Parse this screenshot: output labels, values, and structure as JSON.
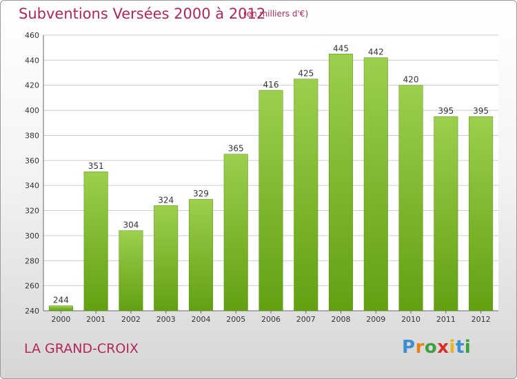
{
  "chart_data": {
    "type": "bar",
    "title": "Subventions Versées 2000 à 2012",
    "subtitle": "(en milliers d'€)",
    "categories": [
      "2000",
      "2001",
      "2002",
      "2003",
      "2004",
      "2005",
      "2006",
      "2007",
      "2008",
      "2009",
      "2010",
      "2011",
      "2012"
    ],
    "values": [
      244,
      351,
      304,
      324,
      329,
      365,
      416,
      425,
      445,
      442,
      420,
      395,
      395
    ],
    "ylim": [
      240,
      460
    ],
    "yticks": [
      240,
      260,
      280,
      300,
      320,
      340,
      360,
      380,
      400,
      420,
      440,
      460
    ],
    "grid": true,
    "bar_color_top": "#9ccf4d",
    "bar_color_bottom": "#62a012"
  },
  "footer": {
    "commune": "LA GRAND-CROIX",
    "logo_letters": [
      "P",
      "r",
      "o",
      "x",
      "i",
      "t",
      "i"
    ],
    "logo_colors": [
      "#3b8fd1",
      "#e8801f",
      "#3aa23a",
      "#d6302a",
      "#e8b51f",
      "#3b8fd1",
      "#3aa23a"
    ]
  },
  "colors": {
    "title": "#b5255a",
    "grid": "#cccccc",
    "axis": "#666666"
  }
}
